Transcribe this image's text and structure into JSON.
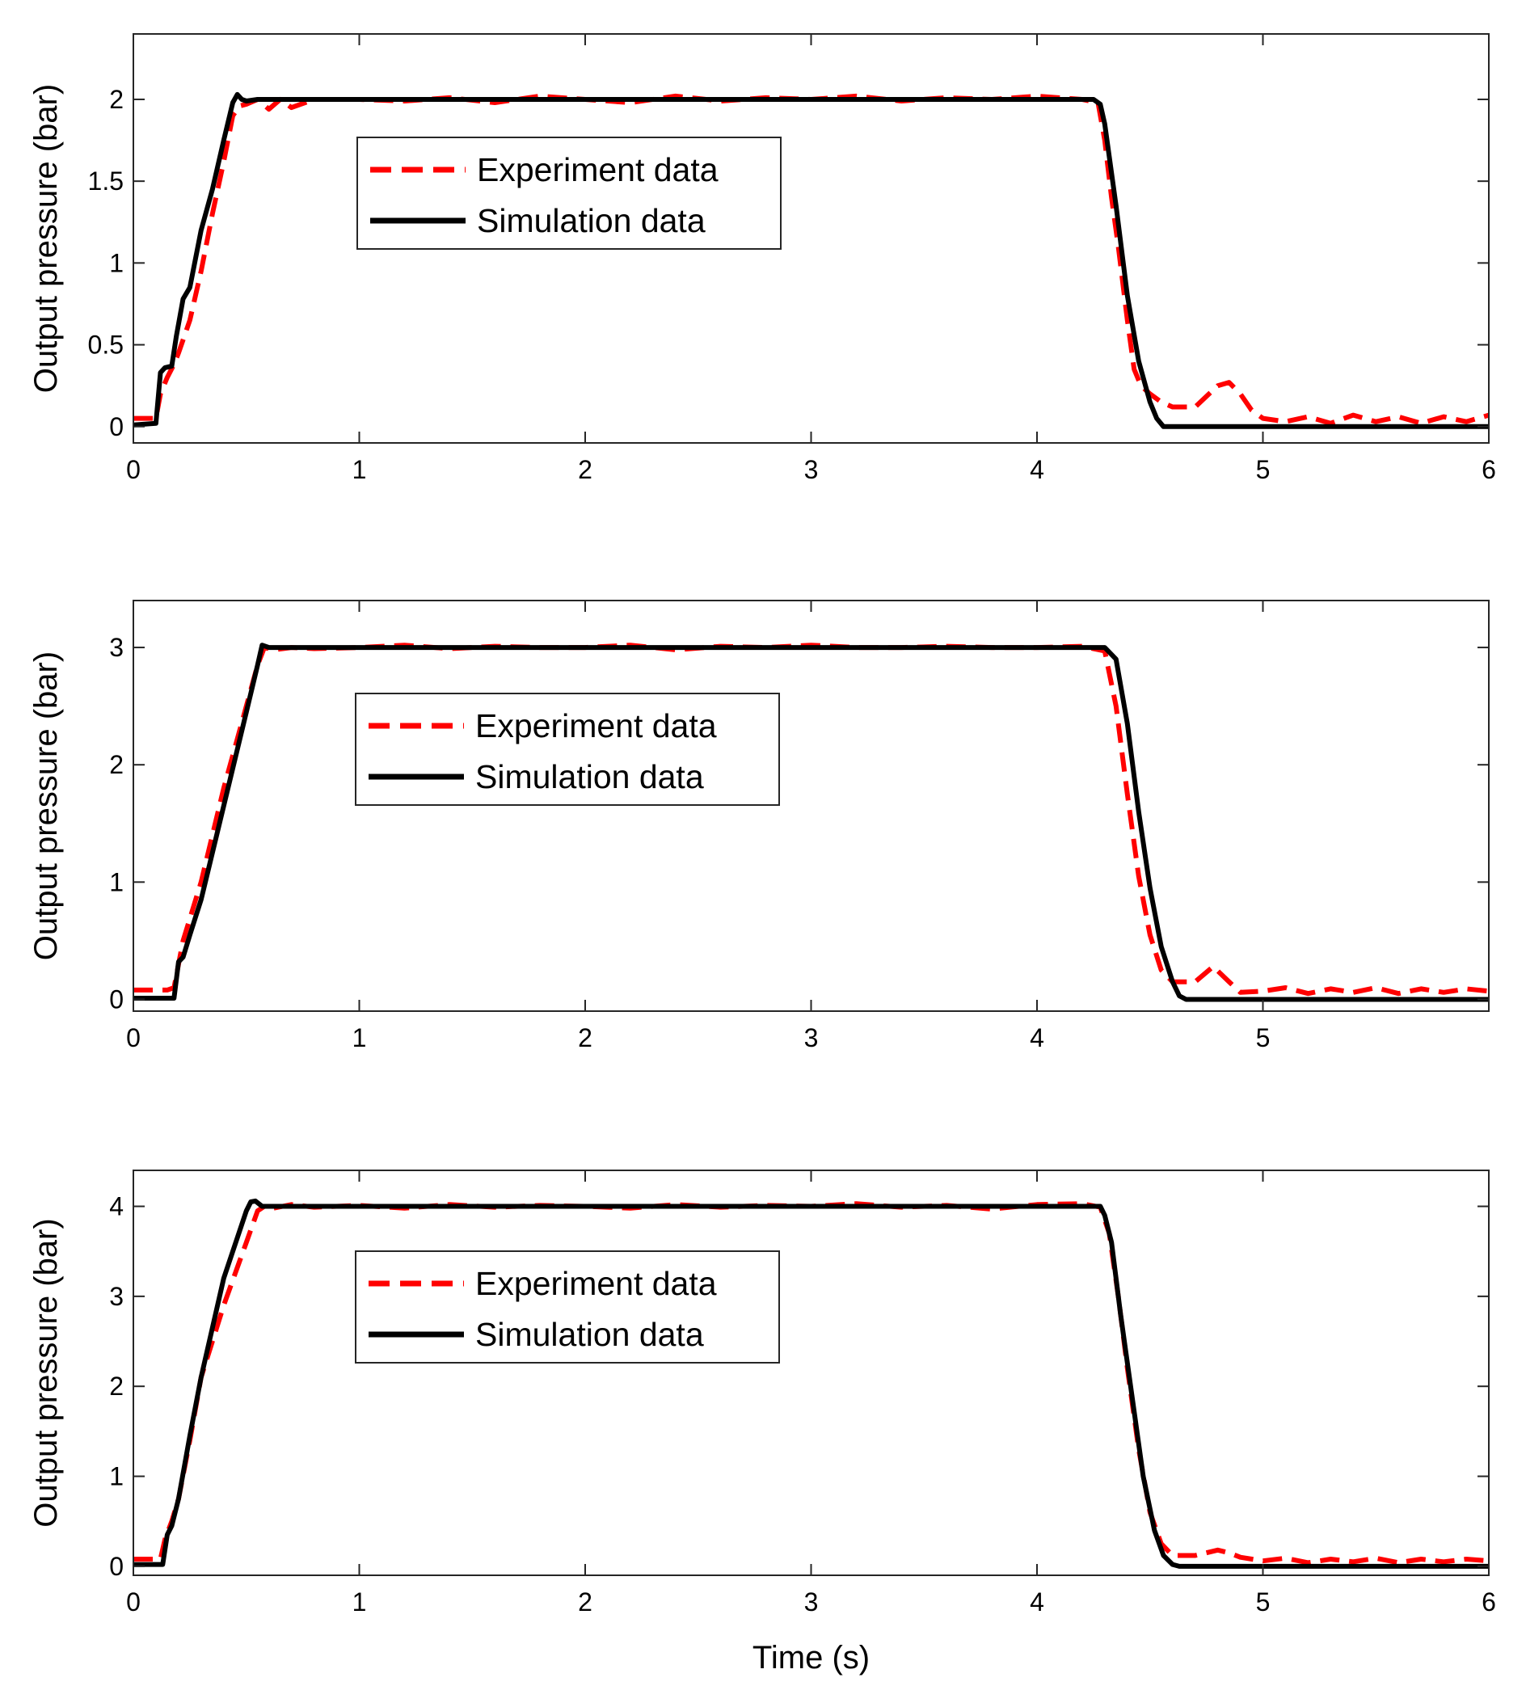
{
  "chart_data": [
    {
      "type": "line",
      "title": "",
      "xlabel": "",
      "ylabel": "Output pressure (bar)",
      "xlim": [
        0,
        6
      ],
      "ylim": [
        -0.1,
        2.4
      ],
      "xticks": [
        "0",
        "1",
        "2",
        "3",
        "4",
        "5",
        "6"
      ],
      "yticks": [
        "0",
        "0.5",
        "1",
        "1.5",
        "2"
      ],
      "grid": false,
      "legend_position": "upper-left",
      "series": [
        {
          "name": "Experiment data",
          "style": "dashed",
          "color": "#ff0000",
          "x": [
            0,
            0.08,
            0.1,
            0.12,
            0.15,
            0.18,
            0.2,
            0.25,
            0.3,
            0.35,
            0.4,
            0.44,
            0.47,
            0.5,
            0.55,
            0.6,
            0.65,
            0.7,
            0.8,
            1.0,
            1.2,
            1.4,
            1.6,
            1.8,
            2.0,
            2.2,
            2.4,
            2.6,
            2.8,
            3.0,
            3.2,
            3.4,
            3.6,
            3.8,
            4.0,
            4.2,
            4.27,
            4.3,
            4.33,
            4.36,
            4.4,
            4.43,
            4.46,
            4.5,
            4.55,
            4.6,
            4.7,
            4.8,
            4.85,
            4.9,
            4.95,
            5.0,
            5.1,
            5.2,
            5.3,
            5.4,
            5.5,
            5.6,
            5.7,
            5.8,
            5.9,
            6.0
          ],
          "values": [
            0.05,
            0.05,
            0.05,
            0.2,
            0.3,
            0.38,
            0.45,
            0.65,
            0.95,
            1.3,
            1.62,
            1.9,
            1.96,
            1.97,
            2.0,
            1.94,
            2.0,
            1.95,
            2.0,
            2.0,
            1.99,
            2.01,
            1.98,
            2.02,
            2.0,
            1.98,
            2.02,
            1.99,
            2.01,
            2.0,
            2.02,
            1.99,
            2.01,
            2.0,
            2.02,
            2.0,
            1.98,
            1.75,
            1.4,
            1.1,
            0.65,
            0.35,
            0.25,
            0.2,
            0.15,
            0.12,
            0.12,
            0.25,
            0.27,
            0.2,
            0.1,
            0.05,
            0.03,
            0.06,
            0.02,
            0.07,
            0.03,
            0.06,
            0.02,
            0.06,
            0.03,
            0.07
          ]
        },
        {
          "name": "Simulation data",
          "style": "solid",
          "color": "#000000",
          "x": [
            0,
            0.1,
            0.12,
            0.14,
            0.17,
            0.19,
            0.22,
            0.25,
            0.3,
            0.35,
            0.4,
            0.44,
            0.46,
            0.48,
            0.5,
            0.55,
            1.0,
            2.0,
            3.0,
            4.0,
            4.25,
            4.28,
            4.3,
            4.35,
            4.4,
            4.45,
            4.5,
            4.53,
            4.56,
            4.6,
            5.0,
            6.0
          ],
          "values": [
            0.01,
            0.02,
            0.33,
            0.36,
            0.37,
            0.55,
            0.78,
            0.85,
            1.2,
            1.45,
            1.75,
            1.98,
            2.03,
            2.0,
            1.99,
            2.0,
            2.0,
            2.0,
            2.0,
            2.0,
            2.0,
            1.97,
            1.85,
            1.35,
            0.8,
            0.4,
            0.15,
            0.05,
            0.0,
            0.0,
            0.0,
            0.0
          ]
        }
      ]
    },
    {
      "type": "line",
      "title": "",
      "xlabel": "",
      "ylabel": "Output pressure (bar)",
      "xlim": [
        0,
        6
      ],
      "ylim": [
        -0.1,
        3.4
      ],
      "xticks": [
        "0",
        "1",
        "2",
        "3",
        "4",
        "5"
      ],
      "yticks": [
        "0",
        "1",
        "2",
        "3"
      ],
      "grid": false,
      "legend_position": "upper-left",
      "series": [
        {
          "name": "Experiment data",
          "style": "dashed",
          "color": "#ff0000",
          "x": [
            0,
            0.15,
            0.18,
            0.22,
            0.3,
            0.4,
            0.5,
            0.55,
            0.58,
            0.62,
            0.7,
            0.8,
            1.0,
            1.2,
            1.4,
            1.6,
            1.8,
            2.0,
            2.2,
            2.4,
            2.6,
            2.8,
            3.0,
            3.2,
            3.4,
            3.6,
            3.8,
            4.0,
            4.2,
            4.3,
            4.35,
            4.4,
            4.45,
            4.5,
            4.55,
            4.6,
            4.7,
            4.78,
            4.85,
            4.9,
            5.0,
            5.1,
            5.2,
            5.3,
            5.4,
            5.5,
            5.6,
            5.7,
            5.8,
            5.9,
            6.0
          ],
          "values": [
            0.08,
            0.08,
            0.1,
            0.5,
            1.0,
            1.8,
            2.5,
            2.85,
            3.0,
            2.98,
            3.0,
            2.99,
            3.0,
            3.02,
            2.99,
            3.01,
            3.0,
            3.0,
            3.02,
            2.98,
            3.01,
            3.0,
            3.02,
            3.0,
            3.0,
            3.01,
            3.0,
            3.0,
            3.01,
            2.97,
            2.5,
            1.75,
            1.05,
            0.55,
            0.25,
            0.15,
            0.15,
            0.28,
            0.15,
            0.06,
            0.07,
            0.1,
            0.05,
            0.09,
            0.06,
            0.1,
            0.05,
            0.09,
            0.06,
            0.09,
            0.07
          ]
        },
        {
          "name": "Simulation data",
          "style": "solid",
          "color": "#000000",
          "x": [
            0,
            0.18,
            0.2,
            0.22,
            0.25,
            0.3,
            0.4,
            0.5,
            0.55,
            0.57,
            0.6,
            0.65,
            1.0,
            2.0,
            3.0,
            4.0,
            4.3,
            4.35,
            4.4,
            4.45,
            4.5,
            4.55,
            4.6,
            4.63,
            4.66,
            5.0,
            6.0
          ],
          "values": [
            0.01,
            0.01,
            0.32,
            0.36,
            0.55,
            0.85,
            1.65,
            2.45,
            2.85,
            3.02,
            3.0,
            3.0,
            3.0,
            3.0,
            3.0,
            3.0,
            3.0,
            2.9,
            2.35,
            1.6,
            0.95,
            0.45,
            0.15,
            0.03,
            0.0,
            0.0,
            0.0
          ]
        }
      ]
    },
    {
      "type": "line",
      "title": "",
      "xlabel": "Time (s)",
      "ylabel": "Output pressure (bar)",
      "xlim": [
        0,
        6
      ],
      "ylim": [
        -0.1,
        4.4
      ],
      "xticks": [
        "0",
        "1",
        "2",
        "3",
        "4",
        "5",
        "6"
      ],
      "yticks": [
        "0",
        "1",
        "2",
        "3",
        "4"
      ],
      "grid": false,
      "legend_position": "upper-left",
      "series": [
        {
          "name": "Experiment data",
          "style": "dashed",
          "color": "#ff0000",
          "x": [
            0,
            0.12,
            0.14,
            0.17,
            0.2,
            0.25,
            0.3,
            0.4,
            0.5,
            0.55,
            0.58,
            0.62,
            0.7,
            0.8,
            1.0,
            1.2,
            1.4,
            1.6,
            1.8,
            2.0,
            2.2,
            2.4,
            2.6,
            2.8,
            3.0,
            3.2,
            3.4,
            3.6,
            3.8,
            4.0,
            4.2,
            4.28,
            4.32,
            4.36,
            4.4,
            4.45,
            4.5,
            4.55,
            4.6,
            4.7,
            4.8,
            4.85,
            4.9,
            5.0,
            5.1,
            5.2,
            5.3,
            5.4,
            5.5,
            5.6,
            5.7,
            5.8,
            5.9,
            6.0
          ],
          "values": [
            0.08,
            0.08,
            0.3,
            0.5,
            0.75,
            1.4,
            2.1,
            2.9,
            3.6,
            3.95,
            4.0,
            3.98,
            4.02,
            3.99,
            4.01,
            3.98,
            4.02,
            3.99,
            4.01,
            4.0,
            3.98,
            4.02,
            3.99,
            4.01,
            4.0,
            4.03,
            3.99,
            4.01,
            3.97,
            4.02,
            4.03,
            3.99,
            3.7,
            3.0,
            2.2,
            1.3,
            0.6,
            0.25,
            0.12,
            0.12,
            0.18,
            0.15,
            0.1,
            0.06,
            0.09,
            0.04,
            0.08,
            0.05,
            0.09,
            0.04,
            0.08,
            0.05,
            0.08,
            0.06
          ]
        },
        {
          "name": "Simulation data",
          "style": "solid",
          "color": "#000000",
          "x": [
            0,
            0.13,
            0.15,
            0.17,
            0.2,
            0.25,
            0.3,
            0.4,
            0.5,
            0.52,
            0.54,
            0.57,
            0.6,
            1.0,
            2.0,
            3.0,
            4.0,
            4.28,
            4.3,
            4.33,
            4.37,
            4.42,
            4.47,
            4.52,
            4.56,
            4.6,
            4.63,
            5.0,
            6.0
          ],
          "values": [
            0.02,
            0.02,
            0.35,
            0.45,
            0.75,
            1.45,
            2.1,
            3.2,
            3.95,
            4.05,
            4.06,
            4.0,
            4.0,
            4.0,
            4.0,
            4.0,
            4.0,
            4.0,
            3.9,
            3.6,
            2.8,
            1.9,
            1.0,
            0.4,
            0.12,
            0.02,
            0.0,
            0.0,
            0.0
          ]
        }
      ]
    }
  ]
}
